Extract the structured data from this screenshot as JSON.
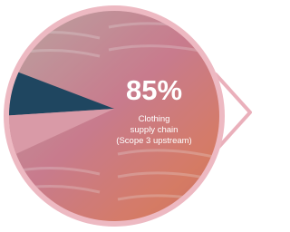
{
  "stat": {
    "value": "85%",
    "label_lines": [
      "Clothing",
      "supply chain",
      "(Scope 3 upstream)"
    ]
  }
}
